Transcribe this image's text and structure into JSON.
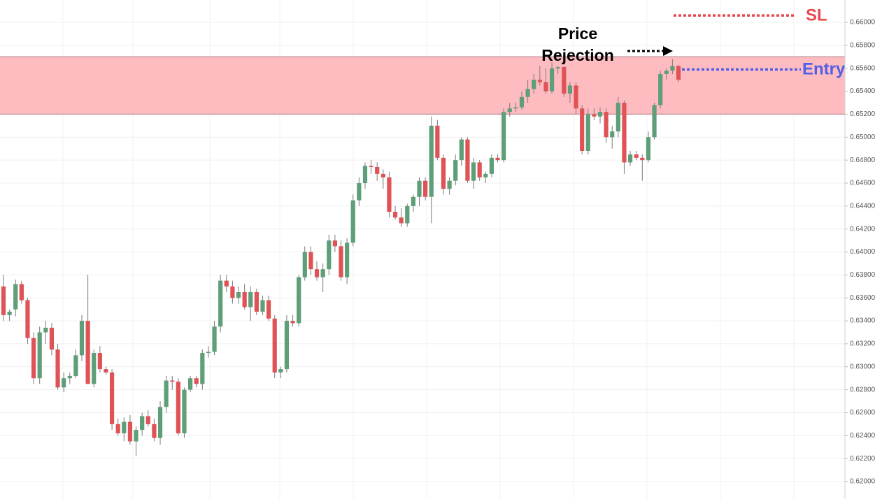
{
  "chart_data": {
    "type": "candlestick",
    "up_color": "#5e9e78",
    "down_color": "#df5357",
    "wick_color": "#7a7a7a",
    "ylim": [
      0.61848,
      0.66195
    ],
    "yticks": [
      {
        "value": 0.62,
        "label": "0.62000"
      },
      {
        "value": 0.622,
        "label": "0.62200"
      },
      {
        "value": 0.624,
        "label": "0.62400"
      },
      {
        "value": 0.626,
        "label": "0.62600"
      },
      {
        "value": 0.628,
        "label": "0.62800"
      },
      {
        "value": 0.63,
        "label": "0.63000"
      },
      {
        "value": 0.632,
        "label": "0.63200"
      },
      {
        "value": 0.634,
        "label": "0.63400"
      },
      {
        "value": 0.636,
        "label": "0.63600"
      },
      {
        "value": 0.638,
        "label": "0.63800"
      },
      {
        "value": 0.64,
        "label": "0.64000"
      },
      {
        "value": 0.642,
        "label": "0.64200"
      },
      {
        "value": 0.644,
        "label": "0.64400"
      },
      {
        "value": 0.646,
        "label": "0.64600"
      },
      {
        "value": 0.648,
        "label": "0.64800"
      },
      {
        "value": 0.65,
        "label": "0.65000"
      },
      {
        "value": 0.652,
        "label": "0.65200"
      },
      {
        "value": 0.654,
        "label": "0.65400"
      },
      {
        "value": 0.656,
        "label": "0.65600"
      },
      {
        "value": 0.658,
        "label": "0.65800"
      },
      {
        "value": 0.66,
        "label": "0.66000"
      }
    ],
    "grid": true,
    "zone": {
      "ymin": 0.652,
      "ymax": 0.657,
      "color": "#ffbcc0",
      "edge_color": "#c99aa6"
    },
    "levels": [
      {
        "label": "SL",
        "value": 0.6606,
        "color": "#e8474e"
      },
      {
        "label": "Entry",
        "value": 0.6559,
        "color": "#4f5fe6"
      }
    ],
    "annotation": {
      "lines": [
        "Price",
        "Rejection"
      ]
    },
    "candles": [
      [
        0.637,
        0.638,
        0.634,
        0.6345
      ],
      [
        0.6345,
        0.635,
        0.634,
        0.6348
      ],
      [
        0.635,
        0.6376,
        0.6344,
        0.6372
      ],
      [
        0.6372,
        0.6375,
        0.6355,
        0.6358
      ],
      [
        0.6358,
        0.636,
        0.632,
        0.6325
      ],
      [
        0.6325,
        0.633,
        0.6285,
        0.629
      ],
      [
        0.629,
        0.6335,
        0.6285,
        0.633
      ],
      [
        0.633,
        0.634,
        0.632,
        0.6334
      ],
      [
        0.6334,
        0.6338,
        0.631,
        0.6315
      ],
      [
        0.6315,
        0.632,
        0.628,
        0.6282
      ],
      [
        0.6282,
        0.6295,
        0.6278,
        0.629
      ],
      [
        0.629,
        0.6295,
        0.6285,
        0.6292
      ],
      [
        0.6292,
        0.6315,
        0.629,
        0.631
      ],
      [
        0.631,
        0.6345,
        0.6305,
        0.634
      ],
      [
        0.634,
        0.638,
        0.6285,
        0.6285
      ],
      [
        0.6285,
        0.6315,
        0.6282,
        0.6312
      ],
      [
        0.6312,
        0.6318,
        0.6295,
        0.6298
      ],
      [
        0.6298,
        0.63,
        0.6293,
        0.6295
      ],
      [
        0.6295,
        0.6298,
        0.6245,
        0.625
      ],
      [
        0.625,
        0.6255,
        0.624,
        0.6242
      ],
      [
        0.6242,
        0.6256,
        0.6235,
        0.6252
      ],
      [
        0.6252,
        0.6258,
        0.6232,
        0.6235
      ],
      [
        0.6235,
        0.6248,
        0.6222,
        0.6245
      ],
      [
        0.6245,
        0.626,
        0.624,
        0.6257
      ],
      [
        0.6257,
        0.6262,
        0.6248,
        0.625
      ],
      [
        0.625,
        0.6255,
        0.6235,
        0.6238
      ],
      [
        0.6238,
        0.627,
        0.6232,
        0.6265
      ],
      [
        0.6265,
        0.6292,
        0.626,
        0.6288
      ],
      [
        0.6288,
        0.6292,
        0.628,
        0.6287
      ],
      [
        0.6287,
        0.629,
        0.624,
        0.6242
      ],
      [
        0.6242,
        0.6282,
        0.6238,
        0.628
      ],
      [
        0.628,
        0.6292,
        0.6278,
        0.629
      ],
      [
        0.629,
        0.6292,
        0.6282,
        0.6285
      ],
      [
        0.6285,
        0.6315,
        0.628,
        0.6312
      ],
      [
        0.6312,
        0.6318,
        0.6308,
        0.6313
      ],
      [
        0.6313,
        0.634,
        0.631,
        0.6335
      ],
      [
        0.6335,
        0.638,
        0.633,
        0.6375
      ],
      [
        0.6375,
        0.638,
        0.6365,
        0.637
      ],
      [
        0.637,
        0.6375,
        0.6355,
        0.636
      ],
      [
        0.636,
        0.637,
        0.6355,
        0.6365
      ],
      [
        0.6365,
        0.6372,
        0.635,
        0.6352
      ],
      [
        0.6352,
        0.637,
        0.634,
        0.6365
      ],
      [
        0.6365,
        0.6368,
        0.6345,
        0.6348
      ],
      [
        0.6348,
        0.6362,
        0.6345,
        0.6358
      ],
      [
        0.6358,
        0.6362,
        0.634,
        0.6342
      ],
      [
        0.6342,
        0.6345,
        0.629,
        0.6295
      ],
      [
        0.6295,
        0.63,
        0.629,
        0.6298
      ],
      [
        0.6298,
        0.6345,
        0.6295,
        0.634
      ],
      [
        0.634,
        0.6345,
        0.6335,
        0.6338
      ],
      [
        0.6338,
        0.638,
        0.6335,
        0.6378
      ],
      [
        0.6378,
        0.6405,
        0.6375,
        0.64
      ],
      [
        0.64,
        0.6405,
        0.638,
        0.6385
      ],
      [
        0.6385,
        0.6392,
        0.6375,
        0.6378
      ],
      [
        0.6378,
        0.639,
        0.6365,
        0.6385
      ],
      [
        0.6385,
        0.6415,
        0.638,
        0.641
      ],
      [
        0.641,
        0.6415,
        0.64,
        0.6405
      ],
      [
        0.6405,
        0.641,
        0.6375,
        0.6378
      ],
      [
        0.6378,
        0.6412,
        0.6372,
        0.6408
      ],
      [
        0.6408,
        0.645,
        0.6405,
        0.6445
      ],
      [
        0.6445,
        0.6465,
        0.644,
        0.646
      ],
      [
        0.646,
        0.6478,
        0.6455,
        0.6475
      ],
      [
        0.6475,
        0.648,
        0.6468,
        0.6474
      ],
      [
        0.6474,
        0.6478,
        0.6462,
        0.6468
      ],
      [
        0.6468,
        0.6472,
        0.6455,
        0.6465
      ],
      [
        0.6465,
        0.647,
        0.643,
        0.6435
      ],
      [
        0.6435,
        0.644,
        0.6428,
        0.643
      ],
      [
        0.643,
        0.6438,
        0.6422,
        0.6425
      ],
      [
        0.6425,
        0.6442,
        0.6422,
        0.644
      ],
      [
        0.644,
        0.645,
        0.6435,
        0.6448
      ],
      [
        0.6448,
        0.6465,
        0.644,
        0.6462
      ],
      [
        0.6462,
        0.6465,
        0.6445,
        0.6448
      ],
      [
        0.6448,
        0.6518,
        0.6425,
        0.651
      ],
      [
        0.651,
        0.6515,
        0.648,
        0.6482
      ],
      [
        0.6482,
        0.6485,
        0.645,
        0.6455
      ],
      [
        0.6455,
        0.6465,
        0.645,
        0.6462
      ],
      [
        0.6462,
        0.6485,
        0.6458,
        0.648
      ],
      [
        0.648,
        0.65,
        0.6475,
        0.6498
      ],
      [
        0.6498,
        0.65,
        0.646,
        0.6462
      ],
      [
        0.6462,
        0.6482,
        0.6455,
        0.6478
      ],
      [
        0.6478,
        0.648,
        0.6462,
        0.6465
      ],
      [
        0.6465,
        0.647,
        0.646,
        0.6468
      ],
      [
        0.6468,
        0.6485,
        0.6465,
        0.6482
      ],
      [
        0.6482,
        0.6485,
        0.6478,
        0.648
      ],
      [
        0.648,
        0.6525,
        0.6478,
        0.6522
      ],
      [
        0.6522,
        0.653,
        0.6518,
        0.6525
      ],
      [
        0.6525,
        0.653,
        0.6522,
        0.6526
      ],
      [
        0.6526,
        0.654,
        0.6524,
        0.6535
      ],
      [
        0.6535,
        0.655,
        0.653,
        0.6542
      ],
      [
        0.6542,
        0.6555,
        0.6538,
        0.655
      ],
      [
        0.655,
        0.6562,
        0.6545,
        0.6548
      ],
      [
        0.6548,
        0.656,
        0.6538,
        0.654
      ],
      [
        0.654,
        0.6565,
        0.6538,
        0.656
      ],
      [
        0.656,
        0.6562,
        0.6555,
        0.6561
      ],
      [
        0.6561,
        0.6562,
        0.6535,
        0.6538
      ],
      [
        0.6538,
        0.6548,
        0.653,
        0.6545
      ],
      [
        0.6545,
        0.6548,
        0.652,
        0.6525
      ],
      [
        0.6525,
        0.6528,
        0.6485,
        0.6488
      ],
      [
        0.6488,
        0.6525,
        0.6485,
        0.652
      ],
      [
        0.652,
        0.6525,
        0.6515,
        0.6518
      ],
      [
        0.6518,
        0.6526,
        0.6512,
        0.6522
      ],
      [
        0.6522,
        0.6525,
        0.6495,
        0.65
      ],
      [
        0.65,
        0.651,
        0.649,
        0.6505
      ],
      [
        0.6505,
        0.6535,
        0.65,
        0.653
      ],
      [
        0.653,
        0.6532,
        0.6468,
        0.6478
      ],
      [
        0.6478,
        0.6488,
        0.6475,
        0.6485
      ],
      [
        0.6485,
        0.6488,
        0.648,
        0.6482
      ],
      [
        0.6482,
        0.6485,
        0.6462,
        0.648
      ],
      [
        0.648,
        0.6505,
        0.6478,
        0.65
      ],
      [
        0.65,
        0.653,
        0.6498,
        0.6528
      ],
      [
        0.6528,
        0.6558,
        0.6525,
        0.6555
      ],
      [
        0.6555,
        0.656,
        0.655,
        0.6558
      ],
      [
        0.6558,
        0.6568,
        0.6555,
        0.6562
      ],
      [
        0.6562,
        0.6563,
        0.6548,
        0.655
      ]
    ]
  }
}
